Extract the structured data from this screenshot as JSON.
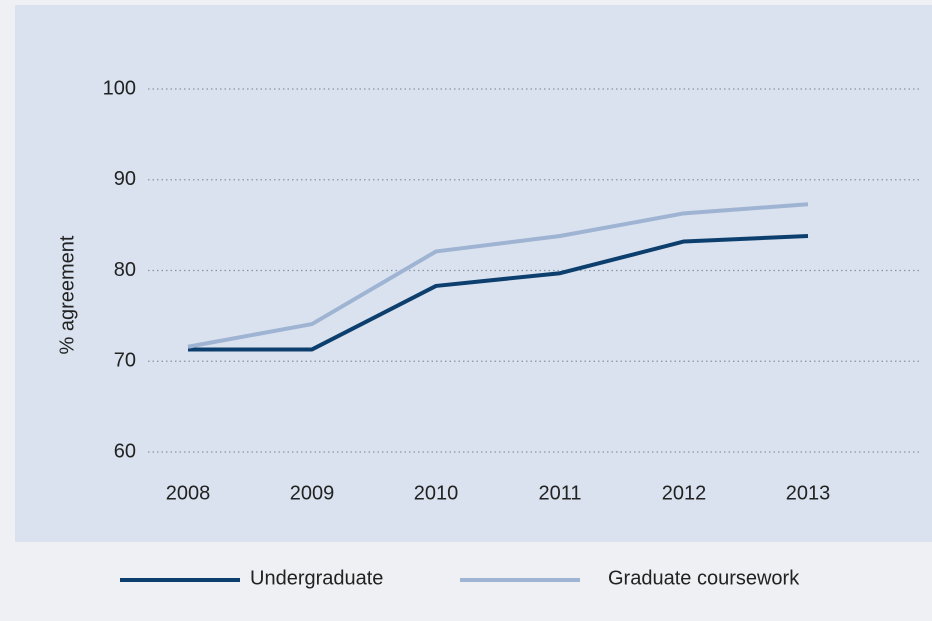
{
  "chart_data": {
    "type": "line",
    "y_label": "% agreement",
    "categories": [
      "2008",
      "2009",
      "2010",
      "2011",
      "2012",
      "2013"
    ],
    "series": [
      {
        "name": "Undergraduate",
        "color": "#0d3f6e",
        "values": [
          71.3,
          71.3,
          78.3,
          79.7,
          83.2,
          83.8
        ]
      },
      {
        "name": "Graduate coursework",
        "color": "#9fb3d3",
        "values": [
          71.6,
          74.1,
          82.1,
          83.8,
          86.3,
          87.3
        ]
      }
    ],
    "ylim": [
      60,
      100
    ],
    "yticks": [
      60,
      70,
      80,
      90,
      100
    ],
    "grid": true,
    "legend": "bottom"
  }
}
